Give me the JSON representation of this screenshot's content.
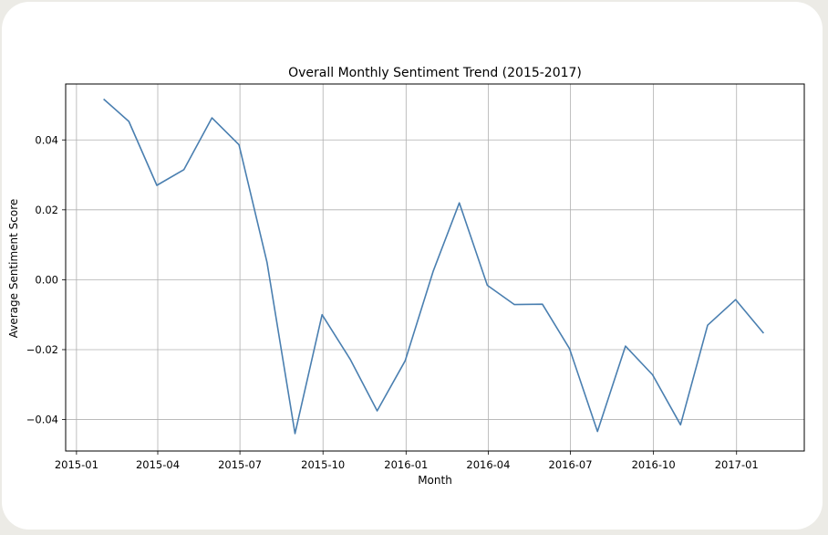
{
  "chart_data": {
    "type": "line",
    "title": "Overall Monthly Sentiment Trend (2015-2017)",
    "xlabel": "Month",
    "ylabel": "Average Sentiment Score",
    "grid": true,
    "legend": "none",
    "line_color": "#4a7fb0",
    "x_ticks": [
      "2015-01",
      "2015-04",
      "2015-07",
      "2015-10",
      "2016-01",
      "2016-04",
      "2016-07",
      "2016-10",
      "2017-01"
    ],
    "y_ticks": [
      "0.04",
      "0.02",
      "0.00",
      "−0.02",
      "−0.04"
    ],
    "y_tick_values": [
      0.04,
      0.02,
      0.0,
      -0.02,
      -0.04
    ],
    "ylim": [
      -0.049,
      0.056
    ],
    "xlim": [
      "2014-12-20",
      "2017-03-17"
    ],
    "series": [
      {
        "x": [
          "2015-01-31",
          "2015-02-28",
          "2015-03-31",
          "2015-04-30",
          "2015-05-31",
          "2015-06-30",
          "2015-07-31",
          "2015-08-31",
          "2015-09-30",
          "2015-10-31",
          "2015-11-30",
          "2015-12-31",
          "2016-01-31",
          "2016-02-29",
          "2016-03-31",
          "2016-04-30",
          "2016-05-31",
          "2016-06-30",
          "2016-07-31",
          "2016-08-31",
          "2016-09-30",
          "2016-10-31",
          "2016-11-30",
          "2016-12-31",
          "2017-01-31"
        ],
        "values": [
          0.0517,
          0.0453,
          0.027,
          0.0315,
          0.0463,
          0.0386,
          0.005,
          -0.044,
          -0.01,
          -0.0227,
          -0.0375,
          -0.0232,
          0.0024,
          0.022,
          -0.0016,
          -0.0071,
          -0.007,
          -0.0197,
          -0.0434,
          -0.019,
          -0.0272,
          -0.0415,
          -0.013,
          -0.0057,
          -0.0153
        ]
      }
    ]
  }
}
